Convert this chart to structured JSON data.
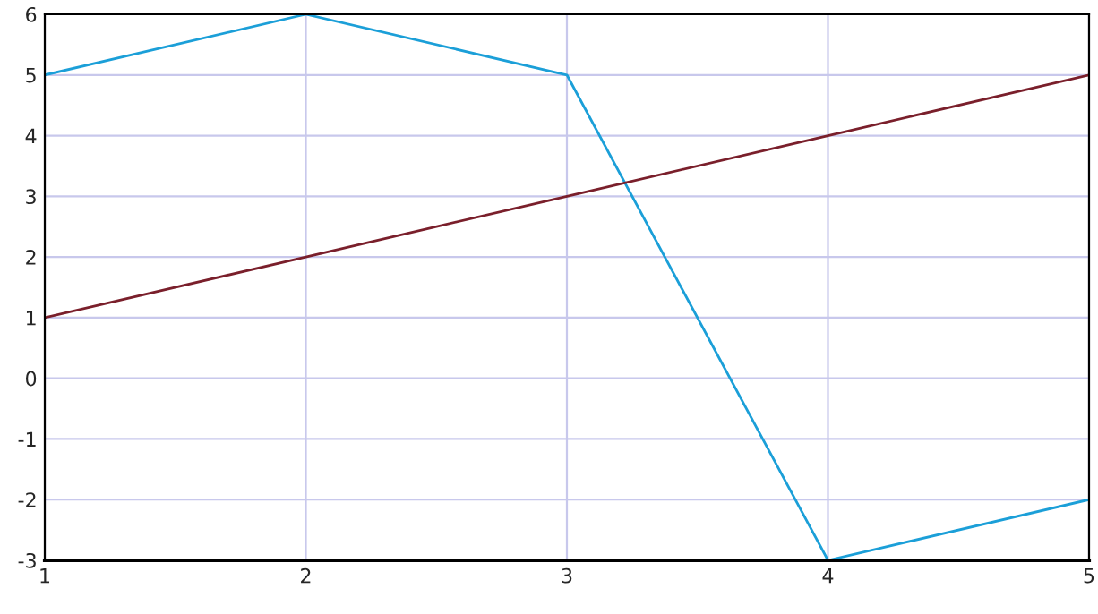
{
  "chart_data": {
    "type": "line",
    "x": [
      1,
      2,
      3,
      4,
      5
    ],
    "series": [
      {
        "color": "#1b9fd8",
        "values": [
          5,
          6,
          5,
          -3,
          -2
        ]
      },
      {
        "color": "#7a1f2b",
        "values": [
          1,
          2,
          3,
          4,
          5
        ]
      }
    ],
    "xlim": [
      1,
      5
    ],
    "xticks": [
      1,
      2,
      3,
      4,
      5
    ],
    "ylim": [
      -3,
      6
    ],
    "yticks": [
      -3,
      -2,
      -1,
      0,
      1,
      2,
      3,
      4,
      5,
      6
    ],
    "grid": true,
    "marker": "none",
    "line_style": "solid",
    "legend": false
  }
}
